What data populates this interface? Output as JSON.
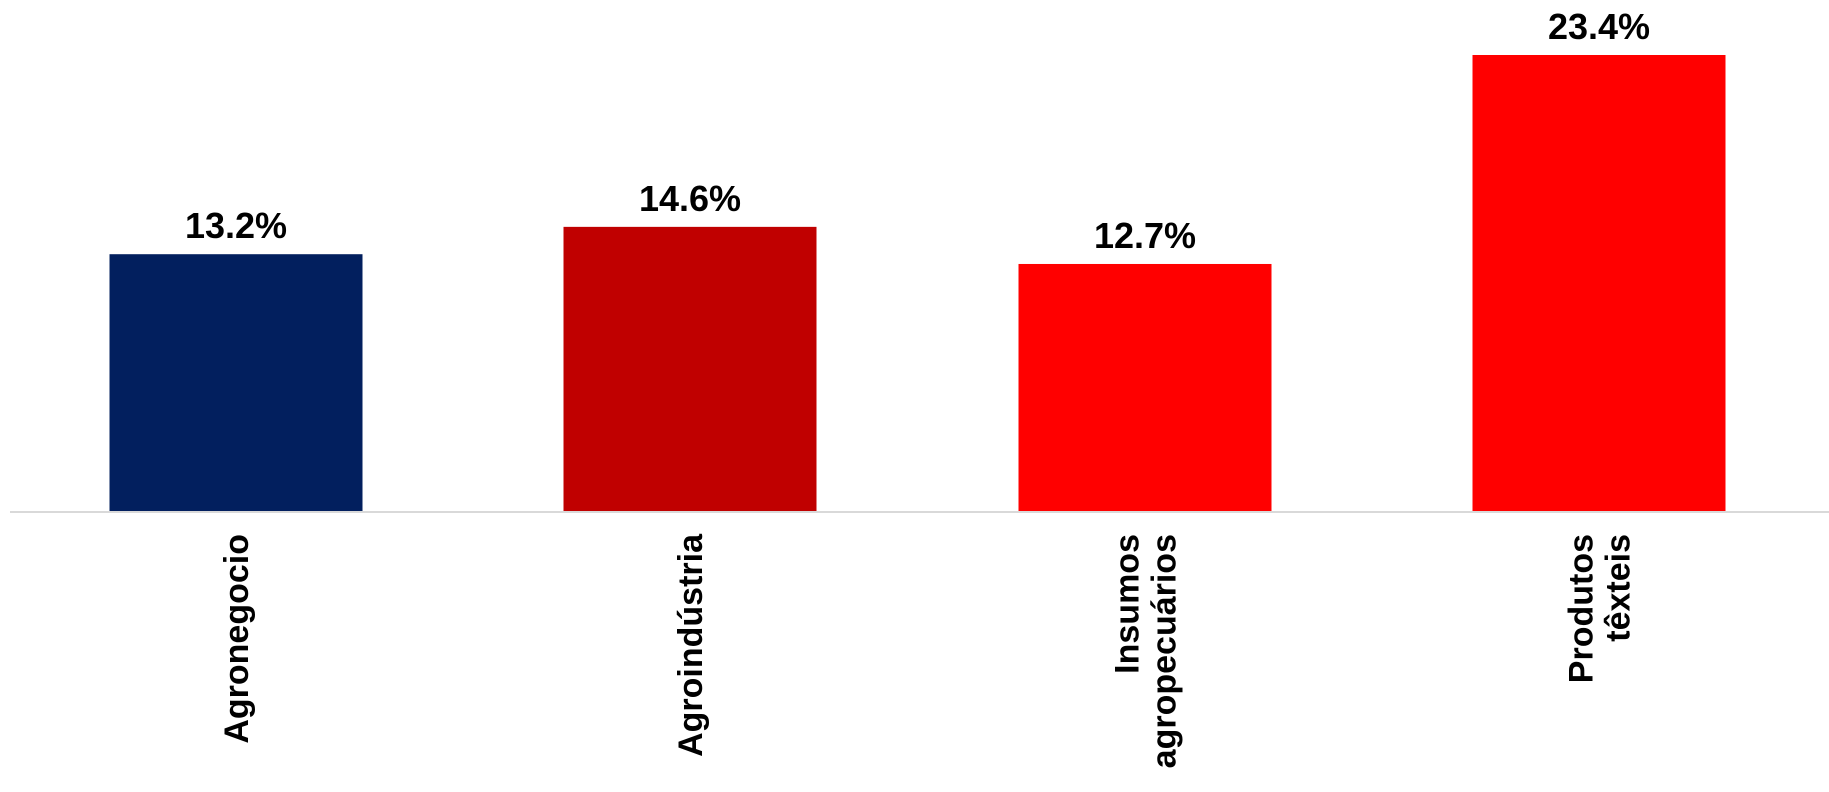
{
  "chart_data": {
    "type": "bar",
    "title": "",
    "xlabel": "",
    "ylabel": "",
    "ylim": [
      0,
      23.4
    ],
    "grid": false,
    "legend": "none",
    "categories": [
      [
        "Agronegocio"
      ],
      [
        "Agroindústria"
      ],
      [
        "Insumos",
        "agropecuários"
      ],
      [
        "Produtos",
        "têxteis"
      ]
    ],
    "values": [
      13.2,
      14.6,
      12.7,
      23.4
    ],
    "value_labels": [
      "13.2%",
      "14.6%",
      "12.7%",
      "23.4%"
    ],
    "colors": [
      "#021F5E",
      "#C00000",
      "#FF0000",
      "#FF0000"
    ],
    "axis_color": "#D9D9D9"
  }
}
